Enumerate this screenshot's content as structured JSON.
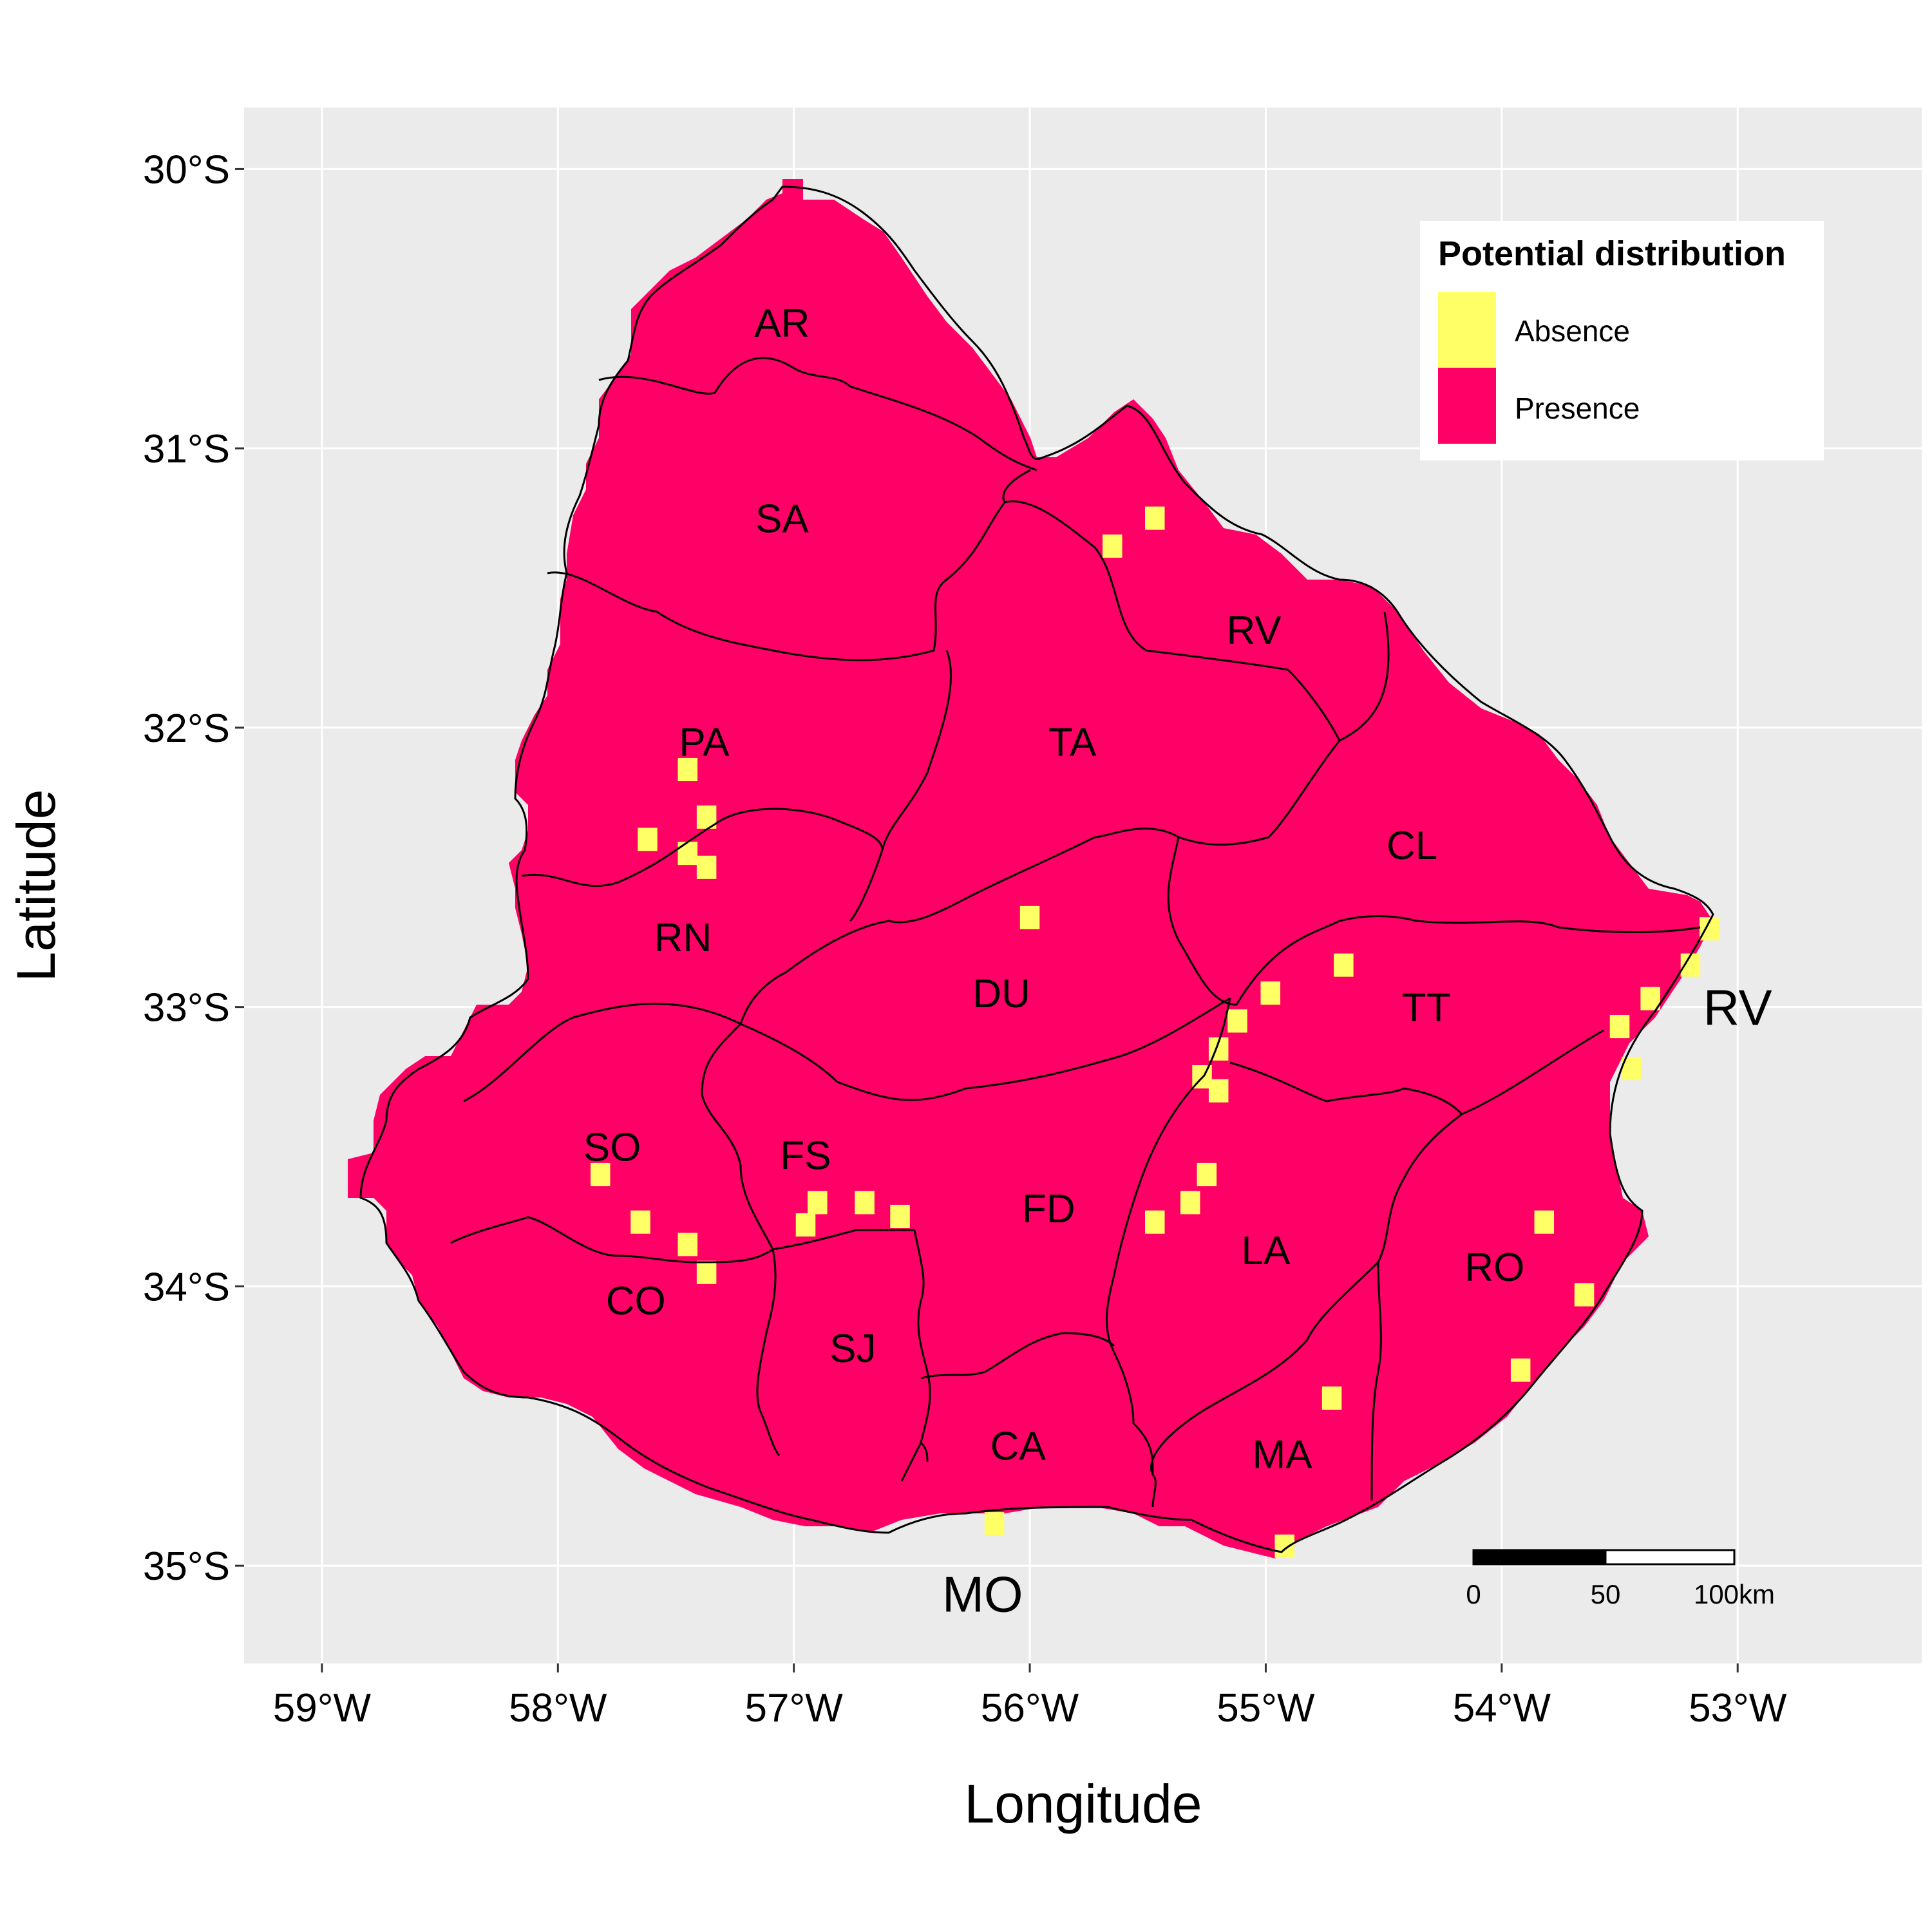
{
  "axes": {
    "x_title": "Longitude",
    "y_title": "Latitude",
    "x_ticks": [
      {
        "value": -59,
        "label": "59°W"
      },
      {
        "value": -58,
        "label": "58°W"
      },
      {
        "value": -57,
        "label": "57°W"
      },
      {
        "value": -56,
        "label": "56°W"
      },
      {
        "value": -55,
        "label": "55°W"
      },
      {
        "value": -54,
        "label": "54°W"
      },
      {
        "value": -53,
        "label": "53°W"
      }
    ],
    "y_ticks": [
      {
        "value": -30,
        "label": "30°S"
      },
      {
        "value": -31,
        "label": "31°S"
      },
      {
        "value": -32,
        "label": "32°S"
      },
      {
        "value": -33,
        "label": "33°S"
      },
      {
        "value": -34,
        "label": "34°S"
      },
      {
        "value": -35,
        "label": "35°S"
      }
    ],
    "xlim": [
      -59.33,
      -52.22
    ],
    "ylim": [
      -35.35,
      -29.78
    ],
    "grid": true,
    "panel_color": "#ebebeb",
    "grid_color": "#ffffff"
  },
  "legend": {
    "title": "Potential distribution",
    "position": "top-right",
    "entries": [
      {
        "label": "Absence",
        "color": "#ffff66"
      },
      {
        "label": "Presence",
        "color": "#ff0066"
      }
    ]
  },
  "scale_bar": {
    "labels": [
      "0",
      "50",
      "100km"
    ],
    "length_km": 100
  },
  "region_labels": [
    {
      "code": "AR",
      "lon": -57.05,
      "lat": -30.55
    },
    {
      "code": "SA",
      "lon": -57.05,
      "lat": -31.25
    },
    {
      "code": "RV",
      "lon": -55.05,
      "lat": -31.65
    },
    {
      "code": "PA",
      "lon": -57.38,
      "lat": -32.05
    },
    {
      "code": "TA",
      "lon": -55.82,
      "lat": -32.05
    },
    {
      "code": "CL",
      "lon": -54.38,
      "lat": -32.42
    },
    {
      "code": "RN",
      "lon": -57.47,
      "lat": -32.75
    },
    {
      "code": "DU",
      "lon": -56.12,
      "lat": -32.95
    },
    {
      "code": "TT",
      "lon": -54.32,
      "lat": -33.0
    },
    {
      "code": "SO",
      "lon": -57.77,
      "lat": -33.5
    },
    {
      "code": "FS",
      "lon": -56.95,
      "lat": -33.53
    },
    {
      "code": "FD",
      "lon": -55.92,
      "lat": -33.72
    },
    {
      "code": "LA",
      "lon": -55.0,
      "lat": -33.87
    },
    {
      "code": "RO",
      "lon": -54.03,
      "lat": -33.93
    },
    {
      "code": "CO",
      "lon": -57.67,
      "lat": -34.05
    },
    {
      "code": "SJ",
      "lon": -56.75,
      "lat": -34.22
    },
    {
      "code": "CA",
      "lon": -56.05,
      "lat": -34.57
    },
    {
      "code": "MA",
      "lon": -54.93,
      "lat": -34.6
    }
  ],
  "outside_labels": [
    {
      "code": "RV",
      "lon": -53.0,
      "lat": -33.0
    },
    {
      "code": "MO",
      "lon": -56.2,
      "lat": -35.1
    }
  ],
  "absence_cells": [
    [
      -55.65,
      -31.35
    ],
    [
      -55.47,
      -31.25
    ],
    [
      -57.45,
      -32.15
    ],
    [
      -57.37,
      -32.32
    ],
    [
      -57.62,
      -32.4
    ],
    [
      -57.45,
      -32.45
    ],
    [
      -57.37,
      -32.5
    ],
    [
      -56.0,
      -32.68
    ],
    [
      -54.67,
      -32.85
    ],
    [
      -54.98,
      -32.95
    ],
    [
      -55.12,
      -33.05
    ],
    [
      -55.2,
      -33.15
    ],
    [
      -55.27,
      -33.25
    ],
    [
      -55.2,
      -33.3
    ],
    [
      -53.12,
      -32.72
    ],
    [
      -53.2,
      -32.85
    ],
    [
      -53.37,
      -32.97
    ],
    [
      -53.5,
      -33.07
    ],
    [
      -53.45,
      -33.22
    ],
    [
      -57.82,
      -33.6
    ],
    [
      -57.65,
      -33.77
    ],
    [
      -57.45,
      -33.85
    ],
    [
      -57.37,
      -33.95
    ],
    [
      -56.9,
      -33.7
    ],
    [
      -56.7,
      -33.7
    ],
    [
      -56.55,
      -33.75
    ],
    [
      -56.95,
      -33.78
    ],
    [
      -55.25,
      -33.6
    ],
    [
      -55.32,
      -33.7
    ],
    [
      -55.47,
      -33.77
    ],
    [
      -53.82,
      -33.77
    ],
    [
      -53.65,
      -34.03
    ],
    [
      -53.92,
      -34.3
    ],
    [
      -54.72,
      -34.4
    ],
    [
      -56.15,
      -34.85
    ],
    [
      -54.92,
      -34.93
    ]
  ]
}
